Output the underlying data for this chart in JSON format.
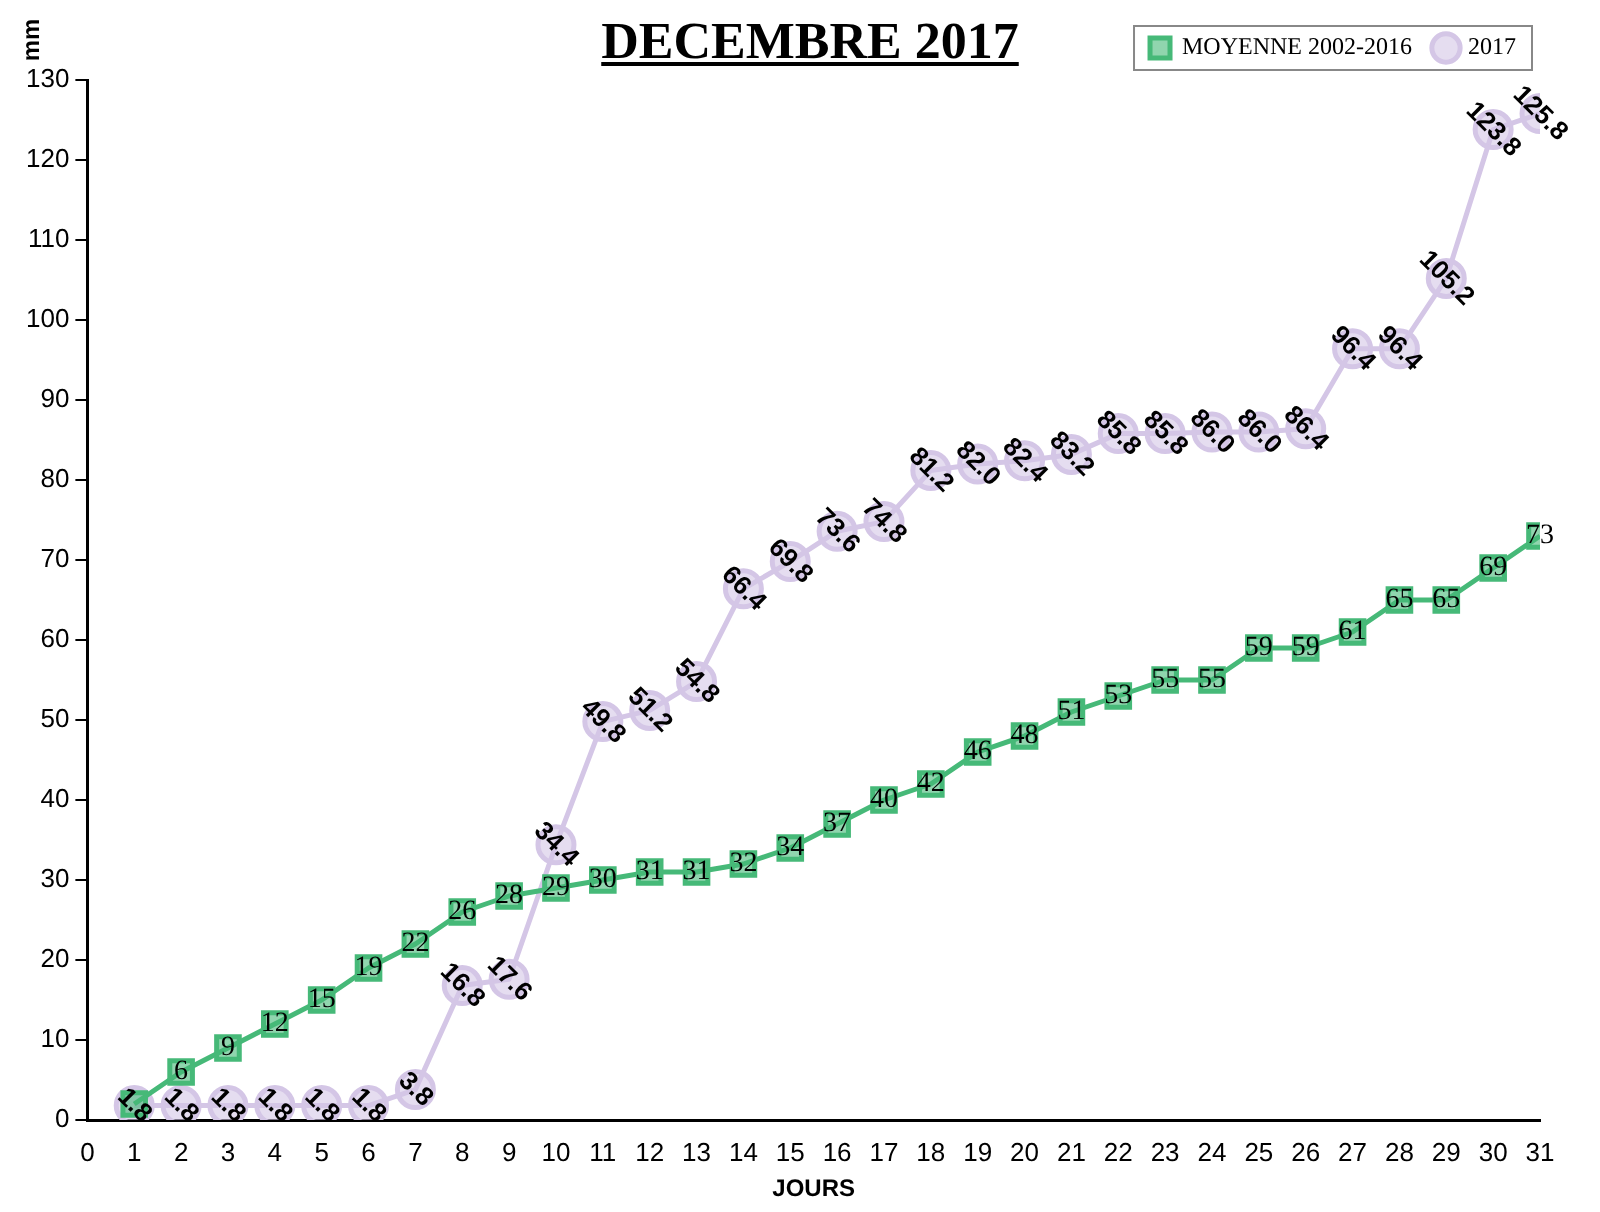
{
  "chart_data": {
    "type": "line",
    "title": "DECEMBRE 2017",
    "xlabel": "JOURS",
    "ylabel": "mm",
    "x": [
      1,
      2,
      3,
      4,
      5,
      6,
      7,
      8,
      9,
      10,
      11,
      12,
      13,
      14,
      15,
      16,
      17,
      18,
      19,
      20,
      21,
      22,
      23,
      24,
      25,
      26,
      27,
      28,
      29,
      30,
      31
    ],
    "xlim": [
      0,
      31
    ],
    "xticks": [
      0,
      1,
      2,
      3,
      4,
      5,
      6,
      7,
      8,
      9,
      10,
      11,
      12,
      13,
      14,
      15,
      16,
      17,
      18,
      19,
      20,
      21,
      22,
      23,
      24,
      25,
      26,
      27,
      28,
      29,
      30,
      31
    ],
    "ylim": [
      0,
      130
    ],
    "yticks": [
      0,
      10,
      20,
      30,
      40,
      50,
      60,
      70,
      80,
      90,
      100,
      110,
      120,
      130
    ],
    "grid": false,
    "legend": "top right",
    "data_labels": true,
    "series": [
      {
        "name": "MOYENNE 2002-2016",
        "color": "#46b978",
        "marker": "square",
        "values": [
          2,
          6,
          9,
          12,
          15,
          19,
          22,
          26,
          28,
          29,
          30,
          31,
          31,
          32,
          34,
          37,
          40,
          42,
          46,
          48,
          51,
          53,
          55,
          55,
          59,
          59,
          61,
          65,
          65,
          69,
          73
        ],
        "value_labels": [
          null,
          "6",
          "9",
          "12",
          "15",
          "19",
          "22",
          "26",
          "28",
          "29",
          "30",
          "31",
          "31",
          "32",
          "34",
          "37",
          "40",
          "42",
          "46",
          "48",
          "51",
          "53",
          "55",
          "55",
          "59",
          "59",
          "61",
          "65",
          "65",
          "69",
          "73"
        ]
      },
      {
        "name": "2017",
        "color": "#d4c6e6",
        "marker": "circle",
        "values": [
          1.8,
          1.8,
          1.8,
          1.8,
          1.8,
          1.8,
          3.8,
          16.8,
          17.6,
          34.4,
          49.8,
          51.2,
          54.8,
          66.4,
          69.8,
          73.6,
          74.8,
          81.2,
          82.0,
          82.4,
          83.2,
          85.8,
          85.8,
          86.0,
          86.0,
          86.4,
          96.4,
          96.4,
          105.2,
          123.8,
          125.8
        ],
        "value_labels": [
          "1.8",
          "1.8",
          "1.8",
          "1.8",
          "1.8",
          "1.8",
          "3.8",
          "16.8",
          "17.6",
          "34.4",
          "49.8",
          "51.2",
          "54.8",
          "66.4",
          "69.8",
          "73.6",
          "74.8",
          "81.2",
          "82.0",
          "82.4",
          "83.2",
          "85.8",
          "85.8",
          "86.0",
          "86.0",
          "86.4",
          "96.4",
          "96.4",
          "105.2",
          "123.8",
          "125.8"
        ]
      }
    ]
  }
}
